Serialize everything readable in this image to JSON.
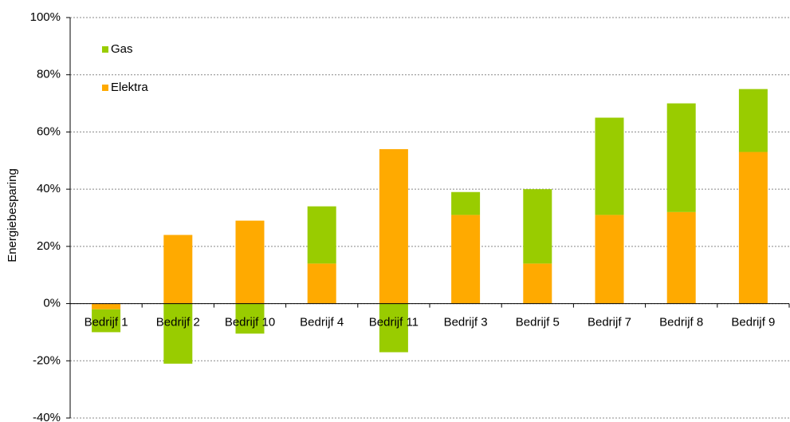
{
  "chart_data": {
    "type": "stacked_bar",
    "y_label": "Energiebesparing",
    "categories": [
      "Bedrijf 1",
      "Bedrijf 2",
      "Bedrijf 10",
      "Bedrijf 4",
      "Bedrijf 11",
      "Bedrijf 3",
      "Bedrijf 5",
      "Bedrijf 7",
      "Bedrijf 8",
      "Bedrijf 9"
    ],
    "series": [
      {
        "name": "Elektra",
        "color": "#ffaa00",
        "values": [
          -2,
          24,
          29,
          14,
          54,
          31,
          14,
          31,
          32,
          53
        ]
      },
      {
        "name": "Gas",
        "color": "#99cc00",
        "values": [
          -8,
          -21,
          -10.5,
          20,
          -17,
          8,
          26,
          34,
          38,
          22
        ]
      }
    ],
    "ylim": [
      -40,
      100
    ],
    "yticks": [
      {
        "value": -40,
        "label": "-40%"
      },
      {
        "value": -20,
        "label": "-20%"
      },
      {
        "value": 0,
        "label": "0%"
      },
      {
        "value": 20,
        "label": "20%"
      },
      {
        "value": 40,
        "label": "40%"
      },
      {
        "value": 60,
        "label": "60%"
      },
      {
        "value": 80,
        "label": "80%"
      },
      {
        "value": 100,
        "label": "100%"
      }
    ],
    "grid": true,
    "legend": "top-left"
  }
}
